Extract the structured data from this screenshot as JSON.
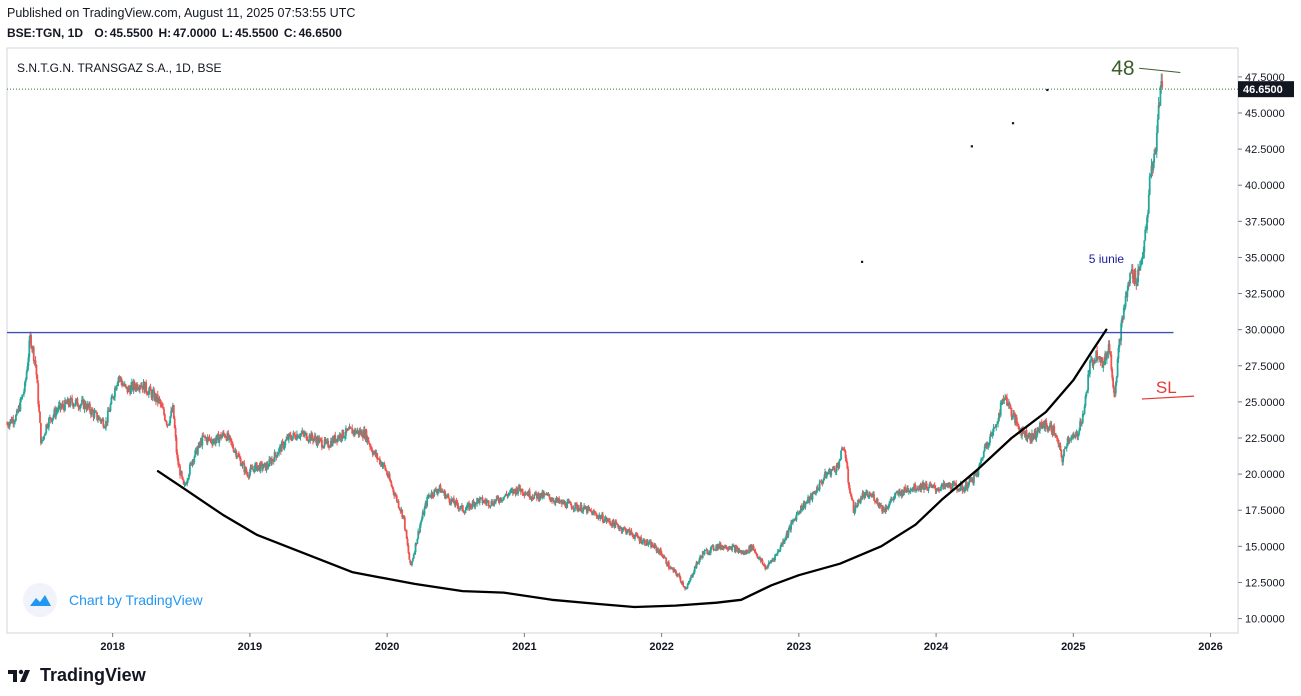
{
  "header": {
    "published": "Published on TradingView.com, August 11, 2025 07:53:55 UTC",
    "symbol": "BSE:TGN, 1D",
    "open_label": "O:",
    "open": "45.5500",
    "high_label": "H:",
    "high": "47.0000",
    "low_label": "L:",
    "low": "45.5500",
    "close_label": "C:",
    "close": "46.6500"
  },
  "chart_data": {
    "type": "candlestick",
    "title": "S.N.T.G.N. TRANSGAZ S.A., 1D, BSE",
    "x_tick_labels": [
      "2018",
      "2019",
      "2020",
      "2021",
      "2022",
      "2023",
      "2024",
      "2025",
      "2026"
    ],
    "x_tick_values": [
      2018,
      2019,
      2020,
      2021,
      2022,
      2023,
      2024,
      2025,
      2026
    ],
    "x_range": [
      2017.23,
      2026.2
    ],
    "y_tick_labels": [
      "10.0000",
      "12.5000",
      "15.0000",
      "17.5000",
      "20.0000",
      "22.5000",
      "25.0000",
      "27.5000",
      "30.0000",
      "32.5000",
      "35.0000",
      "37.5000",
      "40.0000",
      "42.5000",
      "45.0000",
      "47.5000"
    ],
    "y_tick_values": [
      10,
      12.5,
      15,
      17.5,
      20,
      22.5,
      25,
      27.5,
      30,
      32.5,
      35,
      37.5,
      40,
      42.5,
      45,
      47.5
    ],
    "y_range": [
      9.0,
      49.5
    ],
    "last_price": 46.65,
    "last_price_label": "46.6500",
    "price_path": [
      [
        2017.23,
        23.5
      ],
      [
        2017.3,
        24.0
      ],
      [
        2017.36,
        26.0
      ],
      [
        2017.4,
        29.5
      ],
      [
        2017.44,
        27.5
      ],
      [
        2017.48,
        22.0
      ],
      [
        2017.52,
        23.5
      ],
      [
        2017.6,
        24.5
      ],
      [
        2017.7,
        25.0
      ],
      [
        2017.8,
        24.8
      ],
      [
        2017.88,
        24.0
      ],
      [
        2017.95,
        23.5
      ],
      [
        2018.04,
        26.8
      ],
      [
        2018.1,
        25.8
      ],
      [
        2018.2,
        26.3
      ],
      [
        2018.28,
        25.6
      ],
      [
        2018.34,
        25.0
      ],
      [
        2018.4,
        23.5
      ],
      [
        2018.44,
        24.5
      ],
      [
        2018.47,
        21.0
      ],
      [
        2018.52,
        19.0
      ],
      [
        2018.58,
        21.0
      ],
      [
        2018.66,
        22.5
      ],
      [
        2018.74,
        22.3
      ],
      [
        2018.82,
        22.8
      ],
      [
        2018.9,
        21.5
      ],
      [
        2018.98,
        20.0
      ],
      [
        2019.04,
        20.5
      ],
      [
        2019.12,
        20.5
      ],
      [
        2019.2,
        21.5
      ],
      [
        2019.28,
        22.5
      ],
      [
        2019.36,
        22.8
      ],
      [
        2019.46,
        22.5
      ],
      [
        2019.56,
        22.0
      ],
      [
        2019.64,
        22.6
      ],
      [
        2019.74,
        23.0
      ],
      [
        2019.84,
        22.8
      ],
      [
        2019.9,
        21.5
      ],
      [
        2019.98,
        20.5
      ],
      [
        2020.06,
        18.5
      ],
      [
        2020.12,
        17.0
      ],
      [
        2020.17,
        13.5
      ],
      [
        2020.24,
        16.5
      ],
      [
        2020.3,
        18.5
      ],
      [
        2020.38,
        19.0
      ],
      [
        2020.46,
        18.2
      ],
      [
        2020.56,
        17.5
      ],
      [
        2020.66,
        18.2
      ],
      [
        2020.76,
        18.0
      ],
      [
        2020.86,
        18.5
      ],
      [
        2020.96,
        19.0
      ],
      [
        2021.06,
        18.5
      ],
      [
        2021.16,
        18.5
      ],
      [
        2021.26,
        18.0
      ],
      [
        2021.36,
        17.8
      ],
      [
        2021.46,
        17.5
      ],
      [
        2021.56,
        17.0
      ],
      [
        2021.66,
        16.5
      ],
      [
        2021.76,
        16.0
      ],
      [
        2021.84,
        15.5
      ],
      [
        2021.94,
        15.0
      ],
      [
        2022.0,
        14.5
      ],
      [
        2022.06,
        13.5
      ],
      [
        2022.12,
        13.0
      ],
      [
        2022.18,
        12.0
      ],
      [
        2022.24,
        13.5
      ],
      [
        2022.3,
        14.5
      ],
      [
        2022.4,
        15.0
      ],
      [
        2022.5,
        15.0
      ],
      [
        2022.6,
        14.5
      ],
      [
        2022.66,
        15.0
      ],
      [
        2022.72,
        14.0
      ],
      [
        2022.76,
        13.5
      ],
      [
        2022.84,
        14.5
      ],
      [
        2022.92,
        16.0
      ],
      [
        2023.0,
        17.5
      ],
      [
        2023.1,
        18.5
      ],
      [
        2023.2,
        20.0
      ],
      [
        2023.28,
        20.5
      ],
      [
        2023.33,
        22.0
      ],
      [
        2023.36,
        19.5
      ],
      [
        2023.4,
        17.5
      ],
      [
        2023.46,
        18.5
      ],
      [
        2023.54,
        18.5
      ],
      [
        2023.62,
        17.5
      ],
      [
        2023.7,
        18.5
      ],
      [
        2023.8,
        19.0
      ],
      [
        2023.9,
        19.2
      ],
      [
        2024.0,
        19.0
      ],
      [
        2024.1,
        19.2
      ],
      [
        2024.2,
        19.0
      ],
      [
        2024.3,
        20.0
      ],
      [
        2024.36,
        22.0
      ],
      [
        2024.42,
        23.0
      ],
      [
        2024.5,
        25.5
      ],
      [
        2024.56,
        24.0
      ],
      [
        2024.62,
        23.0
      ],
      [
        2024.7,
        22.5
      ],
      [
        2024.78,
        23.5
      ],
      [
        2024.86,
        23.0
      ],
      [
        2024.92,
        21.0
      ],
      [
        2024.96,
        22.5
      ],
      [
        2025.02,
        22.5
      ],
      [
        2025.08,
        24.5
      ],
      [
        2025.12,
        27.5
      ],
      [
        2025.18,
        28.5
      ],
      [
        2025.22,
        27.5
      ],
      [
        2025.26,
        29.0
      ],
      [
        2025.3,
        25.5
      ],
      [
        2025.34,
        29.5
      ],
      [
        2025.37,
        31.5
      ],
      [
        2025.42,
        34.0
      ],
      [
        2025.46,
        33.5
      ],
      [
        2025.5,
        35.0
      ],
      [
        2025.54,
        37.5
      ],
      [
        2025.56,
        41.0
      ],
      [
        2025.6,
        42.0
      ],
      [
        2025.62,
        45.5
      ],
      [
        2025.64,
        47.0
      ],
      [
        2025.65,
        46.65
      ]
    ],
    "trend_curve": [
      [
        2018.33,
        20.2
      ],
      [
        2018.52,
        19.0
      ],
      [
        2018.8,
        17.2
      ],
      [
        2019.05,
        15.8
      ],
      [
        2019.4,
        14.5
      ],
      [
        2019.75,
        13.2
      ],
      [
        2020.2,
        12.4
      ],
      [
        2020.55,
        11.9
      ],
      [
        2020.85,
        11.8
      ],
      [
        2021.2,
        11.3
      ],
      [
        2021.55,
        11.0
      ],
      [
        2021.8,
        10.8
      ],
      [
        2022.1,
        10.9
      ],
      [
        2022.4,
        11.1
      ],
      [
        2022.58,
        11.3
      ],
      [
        2022.8,
        12.3
      ],
      [
        2023.0,
        13.0
      ],
      [
        2023.3,
        13.8
      ],
      [
        2023.6,
        15.0
      ],
      [
        2023.85,
        16.5
      ],
      [
        2024.05,
        18.3
      ],
      [
        2024.3,
        20.3
      ],
      [
        2024.55,
        22.5
      ],
      [
        2024.8,
        24.3
      ],
      [
        2025.0,
        26.5
      ],
      [
        2025.15,
        28.7
      ],
      [
        2025.24,
        30.0
      ]
    ],
    "horizontal_level": 29.8,
    "horizontal_level_range": [
      2017.23,
      2025.73
    ],
    "target_line": [
      [
        2025.48,
        48.1
      ],
      [
        2025.78,
        47.8
      ]
    ],
    "target_label": "48",
    "sl_line": [
      [
        2025.5,
        25.2
      ],
      [
        2025.88,
        25.4
      ]
    ],
    "sl_label": "SL",
    "date_annotation": "5 iunie",
    "date_annotation_point": [
      2025.37,
      34.6
    ],
    "dots": [
      [
        2023.46,
        34.7
      ],
      [
        2024.26,
        42.7
      ],
      [
        2024.56,
        44.3
      ],
      [
        2024.81,
        46.6
      ]
    ],
    "chart_by_label": "Chart by TradingView",
    "colors": {
      "up": "#26a69a",
      "down": "#ef5350",
      "trend": "#000000",
      "level": "#3f51b5",
      "target": "#3b5e2b",
      "sl": "#e53935",
      "annotation": "#1a1aa0",
      "price_tag_bg": "#131722",
      "watermark": "#2196f3"
    }
  },
  "footer": {
    "brand": "TradingView"
  }
}
